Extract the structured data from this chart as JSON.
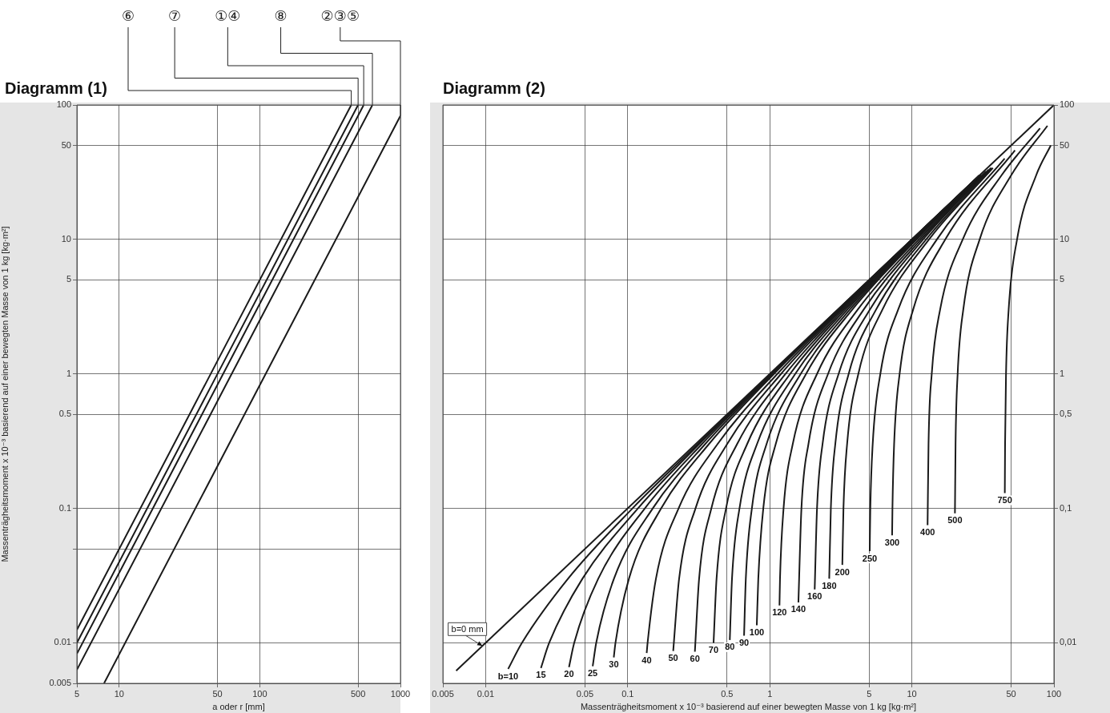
{
  "chart_data": [
    {
      "type": "line",
      "title": "Diagramm (1)",
      "xlabel": "a oder r [mm]",
      "ylabel": "Massenträgheitsmoment x 10⁻³ basierend auf einer bewegten Masse von 1 kg [kg·m²]",
      "log": "xy",
      "grid": true,
      "xlim": [
        5,
        1000
      ],
      "ylim": [
        0.005,
        100
      ],
      "xticks": [
        5,
        10,
        50,
        100,
        500,
        1000
      ],
      "yticks": [
        0.005,
        0.01,
        {
          "value": 0.05,
          "label": null
        },
        0.1,
        0.5,
        1,
        5,
        10,
        50,
        100
      ],
      "series": [
        {
          "name": "⑥",
          "color": "#1a1a1a",
          "x": [
            5,
            447
          ],
          "values": [
            0.0125,
            100
          ]
        },
        {
          "name": "⑦",
          "color": "#1a1a1a",
          "x": [
            5,
            500
          ],
          "values": [
            0.01,
            100
          ]
        },
        {
          "name": "①④",
          "color": "#1a1a1a",
          "x": [
            5,
            548
          ],
          "values": [
            0.0083,
            100
          ]
        },
        {
          "name": "⑧",
          "color": "#1a1a1a",
          "x": [
            5,
            632
          ],
          "values": [
            0.0063,
            100
          ]
        },
        {
          "name": "②③⑤",
          "color": "#1a1a1a",
          "x": [
            7.8,
            1000
          ],
          "values": [
            0.005,
            83
          ]
        }
      ]
    },
    {
      "type": "line",
      "title": "Diagramm (2)",
      "xlabel": "Massenträgheitsmoment x 10⁻³ basierend auf einer bewegten Masse von 1 kg [kg·m²]",
      "log": "xy",
      "grid": true,
      "xlim": [
        0.005,
        100
      ],
      "ylim": [
        0.005,
        100
      ],
      "xticks": [
        0.005,
        0.01,
        0.05,
        0.1,
        0.5,
        1,
        5,
        10,
        50,
        100
      ],
      "yticks": [
        {
          "value": 0.01,
          "label": "0,01"
        },
        {
          "value": 0.1,
          "label": "0,1"
        },
        {
          "value": 0.5,
          "label": "0,5"
        },
        1,
        5,
        10,
        50,
        100
      ],
      "series": [
        {
          "name": "b=0 mm",
          "color": "#1a1a1a",
          "x": [
            0.0062,
            100
          ],
          "values": [
            0.0062,
            100
          ]
        },
        {
          "name": "b=10",
          "color": "#1a1a1a",
          "x": [
            0.0144,
            0.018,
            0.038,
            0.108,
            0.31,
            1.01,
            3.01,
            30
          ],
          "values": [
            0.0064,
            0.01,
            0.03,
            0.1,
            0.3,
            1,
            3,
            30
          ]
        },
        {
          "name": "15",
          "color": "#1a1a1a",
          "x": [
            0.0245,
            0.028,
            0.048,
            0.118,
            0.318,
            1.02,
            3.02,
            30
          ],
          "values": [
            0.0065,
            0.01,
            0.03,
            0.1,
            0.3,
            1,
            3,
            30
          ]
        },
        {
          "name": "20",
          "color": "#1a1a1a",
          "x": [
            0.0386,
            0.042,
            0.062,
            0.132,
            0.332,
            1.03,
            3.03,
            30
          ],
          "values": [
            0.0066,
            0.01,
            0.03,
            0.1,
            0.3,
            1,
            3,
            30
          ]
        },
        {
          "name": "25",
          "color": "#1a1a1a",
          "x": [
            0.0567,
            0.06,
            0.08,
            0.15,
            0.35,
            1.05,
            3.05,
            30
          ],
          "values": [
            0.0067,
            0.01,
            0.03,
            0.1,
            0.3,
            1,
            3,
            30
          ]
        },
        {
          "name": "30",
          "color": "#1a1a1a",
          "x": [
            0.0798,
            0.082,
            0.102,
            0.172,
            0.372,
            1.07,
            3.07,
            30.1
          ],
          "values": [
            0.0078,
            0.01,
            0.03,
            0.1,
            0.3,
            1,
            3,
            30
          ]
        },
        {
          "name": "40",
          "color": "#1a1a1a",
          "x": [
            0.136,
            0.138,
            0.158,
            0.228,
            0.428,
            1.13,
            3.13,
            30.1
          ],
          "values": [
            0.0084,
            0.01,
            0.03,
            0.1,
            0.3,
            1,
            3,
            30
          ]
        },
        {
          "name": "50",
          "color": "#1a1a1a",
          "x": [
            0.209,
            0.23,
            0.3,
            0.5,
            1.2,
            3.2,
            10.2,
            30.2
          ],
          "values": [
            0.0087,
            0.03,
            0.1,
            0.3,
            1,
            3,
            10,
            30
          ]
        },
        {
          "name": "60",
          "color": "#1a1a1a",
          "x": [
            0.297,
            0.318,
            0.388,
            0.588,
            1.29,
            3.29,
            10.3,
            30.3
          ],
          "values": [
            0.0086,
            0.03,
            0.1,
            0.3,
            1,
            3,
            10,
            30
          ]
        },
        {
          "name": "70",
          "color": "#1a1a1a",
          "x": [
            0.402,
            0.422,
            0.492,
            0.692,
            1.39,
            3.39,
            10.4,
            30.4
          ],
          "values": [
            0.01,
            0.03,
            0.1,
            0.3,
            1,
            3,
            10,
            30
          ]
        },
        {
          "name": "80",
          "color": "#1a1a1a",
          "x": [
            0.523,
            0.542,
            0.612,
            0.812,
            1.51,
            3.51,
            10.5,
            30.5
          ],
          "values": [
            0.0105,
            0.03,
            0.1,
            0.3,
            1,
            3,
            10,
            30
          ]
        },
        {
          "name": "90",
          "color": "#1a1a1a",
          "x": [
            0.659,
            0.678,
            0.748,
            0.948,
            1.65,
            3.65,
            10.6,
            30.6
          ],
          "values": [
            0.0113,
            0.03,
            0.1,
            0.3,
            1,
            3,
            10,
            30
          ]
        },
        {
          "name": "100",
          "color": "#1a1a1a",
          "x": [
            0.81,
            0.83,
            0.9,
            1.1,
            1.8,
            3.8,
            10.8,
            30.8
          ],
          "values": [
            0.0135,
            0.03,
            0.1,
            0.3,
            1,
            3,
            10,
            30
          ]
        },
        {
          "name": "120",
          "color": "#1a1a1a",
          "x": [
            1.17,
            1.18,
            1.25,
            1.45,
            2.15,
            4.15,
            11.2,
            33.2
          ],
          "values": [
            0.019,
            0.03,
            0.1,
            0.3,
            1,
            3,
            10,
            32
          ]
        },
        {
          "name": "140",
          "color": "#1a1a1a",
          "x": [
            1.59,
            1.67,
            1.87,
            2.57,
            4.57,
            11.6,
            34.6
          ],
          "values": [
            0.02,
            0.1,
            0.3,
            1,
            3,
            10,
            33
          ]
        },
        {
          "name": "160",
          "color": "#1a1a1a",
          "x": [
            2.07,
            2.15,
            2.35,
            3.05,
            5.05,
            12,
            36
          ],
          "values": [
            0.025,
            0.1,
            0.3,
            1,
            3,
            10,
            34
          ]
        },
        {
          "name": "180",
          "color": "#1a1a1a",
          "x": [
            2.62,
            2.69,
            2.89,
            3.59,
            5.59,
            12.6,
            36.6
          ],
          "values": [
            0.03,
            0.1,
            0.3,
            1,
            3,
            10,
            34
          ]
        },
        {
          "name": "200",
          "color": "#1a1a1a",
          "x": [
            3.24,
            3.3,
            3.5,
            4.2,
            6.2,
            13.2,
            37.2
          ],
          "values": [
            0.038,
            0.1,
            0.3,
            1,
            3,
            10,
            34
          ]
        },
        {
          "name": "250",
          "color": "#1a1a1a",
          "x": [
            5.05,
            5.1,
            5.3,
            6,
            8,
            15,
            45
          ],
          "values": [
            0.048,
            0.1,
            0.3,
            1,
            3,
            10,
            40
          ]
        },
        {
          "name": "300",
          "color": "#1a1a1a",
          "x": [
            7.26,
            7.3,
            7.5,
            8.2,
            10.2,
            17.2,
            53.2
          ],
          "values": [
            0.063,
            0.1,
            0.3,
            1,
            3,
            10,
            46
          ]
        },
        {
          "name": "400",
          "color": "#1a1a1a",
          "x": [
            12.9,
            13.1,
            13.8,
            15.8,
            22.8,
            42.8,
            79.8
          ],
          "values": [
            0.075,
            0.3,
            1,
            3,
            10,
            30,
            67
          ]
        },
        {
          "name": "500",
          "color": "#1a1a1a",
          "x": [
            20.1,
            20.3,
            21,
            23,
            30,
            50,
            90
          ],
          "values": [
            0.092,
            0.3,
            1,
            3,
            10,
            30,
            70
          ]
        },
        {
          "name": "750",
          "color": "#1a1a1a",
          "x": [
            45.1,
            45.3,
            46,
            48,
            55,
            75,
            95
          ],
          "values": [
            0.13,
            0.3,
            1,
            3,
            10,
            30,
            50
          ]
        }
      ]
    }
  ]
}
